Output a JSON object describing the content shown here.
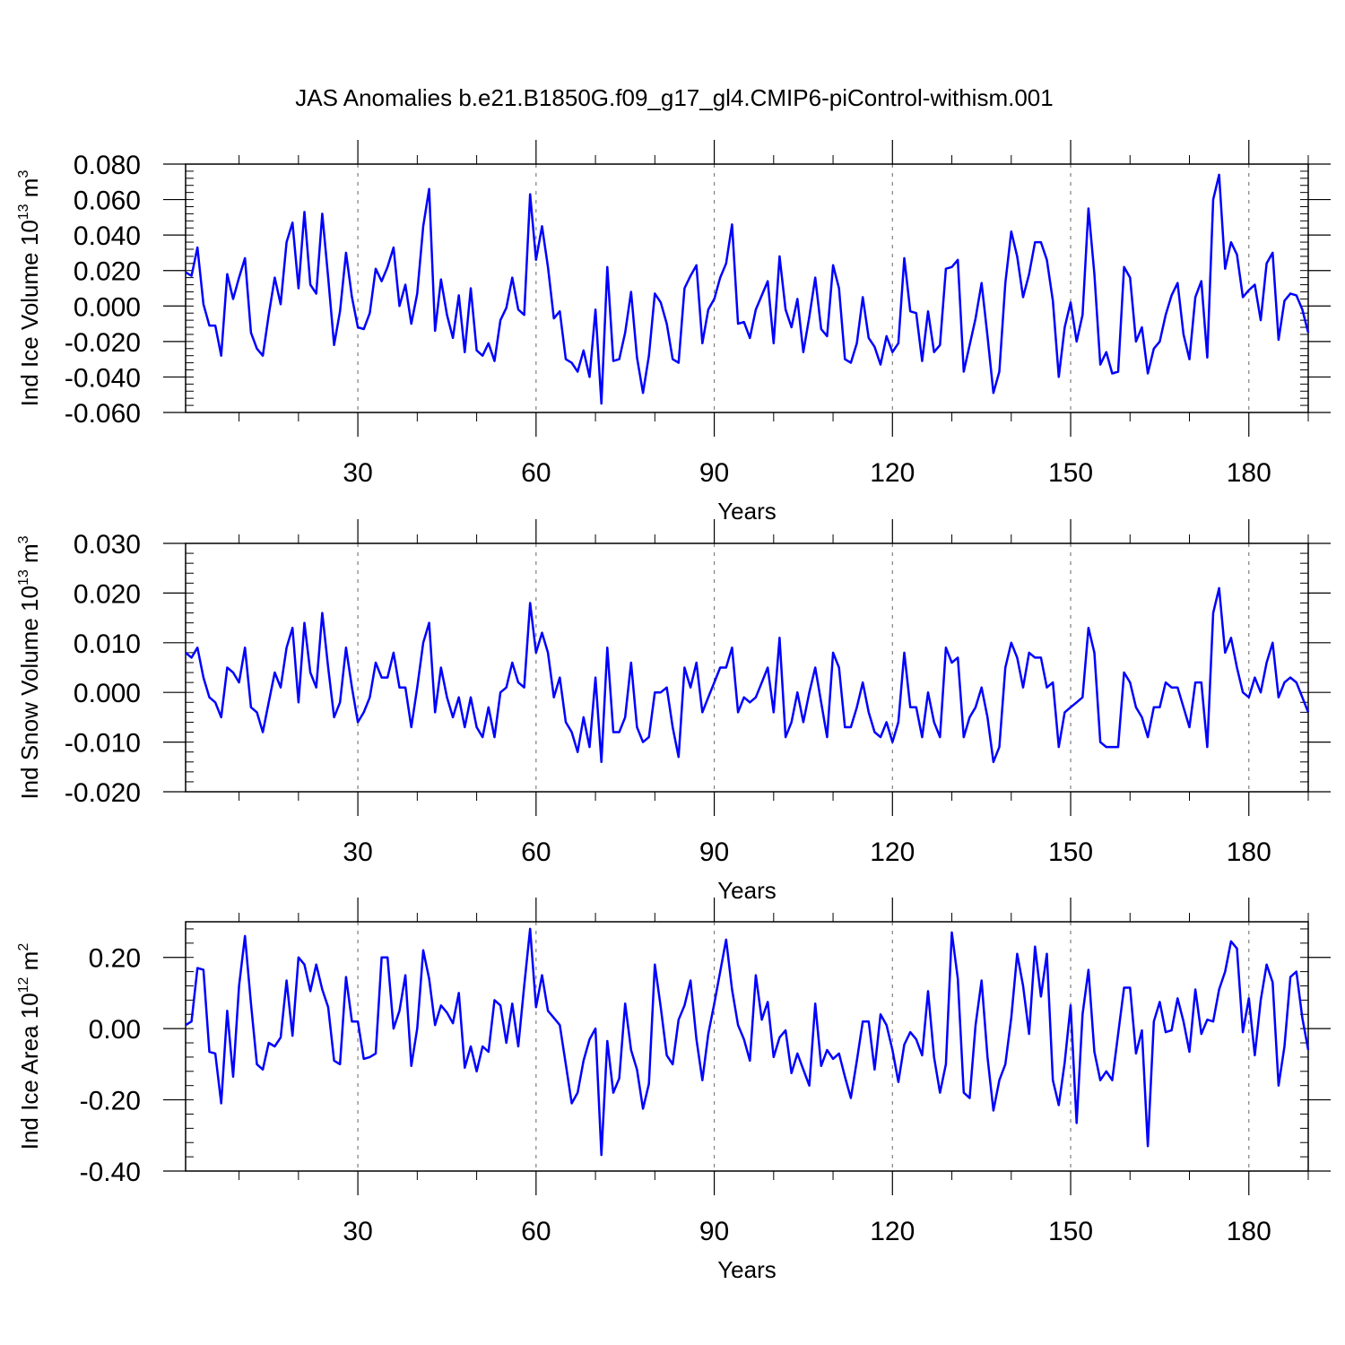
{
  "title": "JAS Anomalies b.e21.B1850G.f09_g17_gl4.CMIP6-piControl-withism.001",
  "colors": {
    "series": "#0000ff",
    "axis": "#000000",
    "grid": "#7f7f7f"
  },
  "chart_data": [
    {
      "type": "line",
      "id": "ice-volume",
      "ylabel": {
        "main": "Ind Ice Volume 10",
        "exp": "13",
        "unit": " m",
        "unit_exp": "3"
      },
      "xlabel": "Years",
      "xlim": [
        1,
        190
      ],
      "ylim": [
        -0.06,
        0.08
      ],
      "yticks": [
        -0.06,
        -0.04,
        -0.02,
        0.0,
        0.02,
        0.04,
        0.06,
        0.08
      ],
      "yticklabels": [
        "-0.060",
        "-0.040",
        "-0.020",
        "0.000",
        "0.020",
        "0.040",
        "0.060",
        "0.080"
      ],
      "xticks": [
        30,
        60,
        90,
        120,
        150,
        180
      ],
      "xticklabels": [
        "30",
        "60",
        "90",
        "120",
        "150",
        "180"
      ],
      "grid_x": [
        30,
        60,
        90,
        120,
        150,
        180
      ],
      "values": [
        0.019,
        0.017,
        0.033,
        0.001,
        -0.011,
        -0.011,
        -0.028,
        0.018,
        0.004,
        0.016,
        0.027,
        -0.015,
        -0.024,
        -0.028,
        -0.005,
        0.016,
        0.001,
        0.036,
        0.047,
        0.01,
        0.053,
        0.012,
        0.007,
        0.052,
        0.016,
        -0.022,
        -0.003,
        0.03,
        0.005,
        -0.012,
        -0.013,
        -0.004,
        0.021,
        0.014,
        0.022,
        0.033,
        0.0,
        0.012,
        -0.01,
        0.007,
        0.045,
        0.066,
        -0.014,
        0.015,
        -0.005,
        -0.018,
        0.006,
        -0.026,
        0.01,
        -0.025,
        -0.028,
        -0.021,
        -0.031,
        -0.008,
        -0.001,
        0.016,
        -0.002,
        -0.005,
        0.063,
        0.026,
        0.045,
        0.022,
        -0.007,
        -0.003,
        -0.03,
        -0.032,
        -0.037,
        -0.025,
        -0.04,
        -0.002,
        -0.055,
        0.022,
        -0.031,
        -0.03,
        -0.015,
        0.008,
        -0.029,
        -0.049,
        -0.028,
        0.007,
        0.002,
        -0.01,
        -0.03,
        -0.032,
        0.01,
        0.017,
        0.023,
        -0.021,
        -0.002,
        0.004,
        0.016,
        0.024,
        0.046,
        -0.01,
        -0.009,
        -0.018,
        -0.002,
        0.006,
        0.014,
        -0.021,
        0.028,
        -0.002,
        -0.012,
        0.004,
        -0.026,
        -0.006,
        0.016,
        -0.013,
        -0.017,
        0.023,
        0.01,
        -0.03,
        -0.032,
        -0.021,
        0.005,
        -0.018,
        -0.023,
        -0.033,
        -0.017,
        -0.026,
        -0.021,
        0.027,
        -0.003,
        -0.004,
        -0.031,
        -0.003,
        -0.026,
        -0.022,
        0.021,
        0.022,
        0.026,
        -0.037,
        -0.022,
        -0.007,
        0.013,
        -0.017,
        -0.049,
        -0.037,
        0.013,
        0.042,
        0.028,
        0.005,
        0.018,
        0.036,
        0.036,
        0.026,
        0.003,
        -0.04,
        -0.012,
        0.002,
        -0.02,
        -0.005,
        0.055,
        0.018,
        -0.033,
        -0.026,
        -0.038,
        -0.037,
        0.022,
        0.016,
        -0.02,
        -0.012,
        -0.038,
        -0.024,
        -0.02,
        -0.005,
        0.006,
        0.013,
        -0.016,
        -0.03,
        0.005,
        0.014,
        -0.029,
        0.06,
        0.074,
        0.021,
        0.036,
        0.029,
        0.005,
        0.009,
        0.012,
        -0.008,
        0.024,
        0.03,
        -0.019,
        0.003,
        0.007,
        0.006,
        -0.002,
        -0.015
      ]
    },
    {
      "type": "line",
      "id": "snow-volume",
      "ylabel": {
        "main": "Ind Snow Volume 10",
        "exp": "13",
        "unit": " m",
        "unit_exp": "3"
      },
      "xlabel": "Years",
      "xlim": [
        1,
        190
      ],
      "ylim": [
        -0.02,
        0.03
      ],
      "yticks": [
        -0.02,
        -0.01,
        0.0,
        0.01,
        0.02,
        0.03
      ],
      "yticklabels": [
        "-0.020",
        "-0.010",
        "0.000",
        "0.010",
        "0.020",
        "0.030"
      ],
      "xticks": [
        30,
        60,
        90,
        120,
        150,
        180
      ],
      "xticklabels": [
        "30",
        "60",
        "90",
        "120",
        "150",
        "180"
      ],
      "grid_x": [
        30,
        60,
        90,
        120,
        150,
        180
      ],
      "values": [
        0.008,
        0.007,
        0.009,
        0.003,
        -0.001,
        -0.002,
        -0.005,
        0.005,
        0.004,
        0.002,
        0.009,
        -0.003,
        -0.004,
        -0.008,
        -0.002,
        0.004,
        0.001,
        0.009,
        0.013,
        -0.002,
        0.014,
        0.004,
        0.001,
        0.016,
        0.005,
        -0.005,
        -0.002,
        0.009,
        0.001,
        -0.006,
        -0.004,
        -0.001,
        0.006,
        0.003,
        0.003,
        0.008,
        0.001,
        0.001,
        -0.007,
        0.001,
        0.01,
        0.014,
        -0.004,
        0.005,
        -0.001,
        -0.005,
        -0.001,
        -0.007,
        -0.001,
        -0.007,
        -0.009,
        -0.003,
        -0.009,
        0.0,
        0.001,
        0.006,
        0.002,
        0.001,
        0.018,
        0.008,
        0.012,
        0.008,
        -0.001,
        0.003,
        -0.006,
        -0.008,
        -0.012,
        -0.005,
        -0.011,
        0.003,
        -0.014,
        0.009,
        -0.008,
        -0.008,
        -0.005,
        0.006,
        -0.007,
        -0.01,
        -0.009,
        0.0,
        0.0,
        0.001,
        -0.007,
        -0.013,
        0.005,
        0.001,
        0.006,
        -0.004,
        -0.001,
        0.002,
        0.005,
        0.005,
        0.009,
        -0.004,
        -0.001,
        -0.002,
        -0.001,
        0.002,
        0.005,
        -0.004,
        0.011,
        -0.009,
        -0.006,
        0.0,
        -0.006,
        0.0,
        0.005,
        -0.002,
        -0.009,
        0.008,
        0.005,
        -0.007,
        -0.007,
        -0.003,
        0.002,
        -0.004,
        -0.008,
        -0.009,
        -0.006,
        -0.01,
        -0.006,
        0.008,
        -0.003,
        -0.003,
        -0.009,
        0.0,
        -0.006,
        -0.009,
        0.009,
        0.006,
        0.007,
        -0.009,
        -0.005,
        -0.003,
        0.001,
        -0.005,
        -0.014,
        -0.011,
        0.005,
        0.01,
        0.007,
        0.001,
        0.008,
        0.007,
        0.007,
        0.001,
        0.002,
        -0.011,
        -0.004,
        -0.003,
        -0.002,
        -0.001,
        0.013,
        0.008,
        -0.01,
        -0.011,
        -0.011,
        -0.011,
        0.004,
        0.002,
        -0.003,
        -0.005,
        -0.009,
        -0.003,
        -0.003,
        0.002,
        0.001,
        0.001,
        -0.003,
        -0.007,
        0.002,
        0.002,
        -0.011,
        0.016,
        0.021,
        0.008,
        0.011,
        0.005,
        0.0,
        -0.001,
        0.003,
        0.0,
        0.006,
        0.01,
        -0.001,
        0.002,
        0.003,
        0.002,
        -0.001,
        -0.004
      ]
    },
    {
      "type": "line",
      "id": "ice-area",
      "ylabel": {
        "main": "Ind Ice Area 10",
        "exp": "12",
        "unit": " m",
        "unit_exp": "2"
      },
      "xlabel": "Years",
      "xlim": [
        1,
        190
      ],
      "ylim": [
        -0.4,
        0.3
      ],
      "yticks": [
        -0.4,
        -0.2,
        0.0,
        0.2
      ],
      "yticklabels": [
        "-0.40",
        "-0.20",
        "0.00",
        "0.20"
      ],
      "xticks": [
        30,
        60,
        90,
        120,
        150,
        180
      ],
      "xticklabels": [
        "30",
        "60",
        "90",
        "120",
        "150",
        "180"
      ],
      "grid_x": [
        30,
        60,
        90,
        120,
        150,
        180
      ],
      "values": [
        0.01,
        0.02,
        0.17,
        0.165,
        -0.065,
        -0.07,
        -0.21,
        0.05,
        -0.135,
        0.12,
        0.26,
        0.07,
        -0.1,
        -0.115,
        -0.04,
        -0.05,
        -0.025,
        0.135,
        -0.02,
        0.2,
        0.18,
        0.105,
        0.18,
        0.11,
        0.06,
        -0.09,
        -0.1,
        0.145,
        0.02,
        0.02,
        -0.085,
        -0.08,
        -0.07,
        0.2,
        0.2,
        0.0,
        0.05,
        0.15,
        -0.105,
        0.0,
        0.22,
        0.14,
        0.01,
        0.065,
        0.045,
        0.015,
        0.1,
        -0.11,
        -0.05,
        -0.12,
        -0.05,
        -0.065,
        0.08,
        0.065,
        -0.04,
        0.07,
        -0.05,
        0.12,
        0.28,
        0.06,
        0.15,
        0.05,
        0.03,
        0.01,
        -0.1,
        -0.21,
        -0.18,
        -0.09,
        -0.03,
        0.0,
        -0.355,
        -0.035,
        -0.18,
        -0.14,
        0.07,
        -0.06,
        -0.115,
        -0.225,
        -0.155,
        0.18,
        0.06,
        -0.075,
        -0.1,
        0.025,
        0.065,
        0.135,
        -0.03,
        -0.145,
        -0.015,
        0.07,
        0.16,
        0.25,
        0.11,
        0.01,
        -0.03,
        -0.09,
        0.15,
        0.025,
        0.075,
        -0.08,
        -0.025,
        -0.005,
        -0.125,
        -0.07,
        -0.115,
        -0.16,
        0.07,
        -0.105,
        -0.06,
        -0.085,
        -0.07,
        -0.135,
        -0.195,
        -0.09,
        0.02,
        0.02,
        -0.115,
        0.04,
        0.01,
        -0.06,
        -0.15,
        -0.045,
        -0.01,
        -0.03,
        -0.075,
        0.105,
        -0.08,
        -0.18,
        -0.1,
        0.27,
        0.14,
        -0.18,
        -0.195,
        0.01,
        0.135,
        -0.08,
        -0.23,
        -0.145,
        -0.1,
        0.03,
        0.21,
        0.12,
        -0.015,
        0.23,
        0.09,
        0.21,
        -0.145,
        -0.215,
        -0.095,
        0.065,
        -0.265,
        0.04,
        0.165,
        -0.065,
        -0.145,
        -0.12,
        -0.145,
        -0.015,
        0.115,
        0.115,
        -0.07,
        -0.005,
        -0.33,
        0.02,
        0.075,
        -0.01,
        -0.005,
        0.085,
        0.02,
        -0.065,
        0.11,
        -0.015,
        0.025,
        0.02,
        0.11,
        0.16,
        0.245,
        0.225,
        -0.01,
        0.085,
        -0.075,
        0.08,
        0.18,
        0.13,
        -0.16,
        -0.05,
        0.145,
        0.16,
        0.03,
        -0.06
      ]
    }
  ]
}
